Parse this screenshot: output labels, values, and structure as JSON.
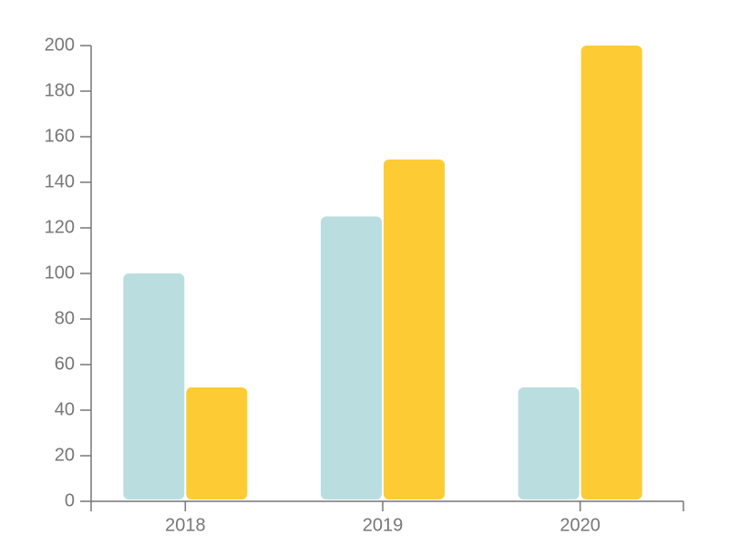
{
  "chart_data": {
    "type": "bar",
    "categories": [
      "2018",
      "2019",
      "2020"
    ],
    "series": [
      {
        "color": "#badedf",
        "values": [
          100,
          125,
          50
        ]
      },
      {
        "color": "#fdcb33",
        "values": [
          50,
          150,
          200
        ]
      }
    ],
    "ylim": [
      0,
      200
    ],
    "yticks": [
      0,
      20,
      40,
      60,
      80,
      100,
      120,
      140,
      160,
      180,
      200
    ]
  }
}
